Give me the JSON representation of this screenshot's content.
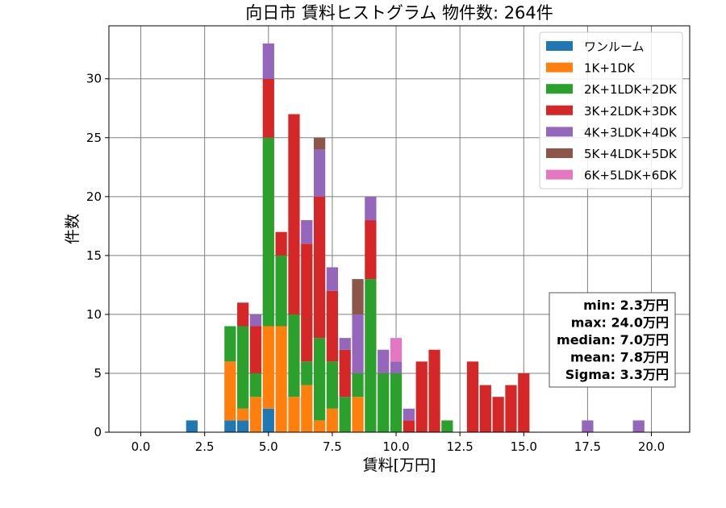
{
  "chart_data": {
    "type": "bar",
    "stacked": true,
    "title": "向日市 賃料ヒストグラム 物件数: 264件",
    "xlabel": "賃料[万円]",
    "ylabel": "件数",
    "xlim": [
      -1.25,
      21.5
    ],
    "ylim": [
      0,
      34.5
    ],
    "xticks": [
      "0.0",
      "2.5",
      "5.0",
      "7.5",
      "10.0",
      "12.5",
      "15.0",
      "17.5",
      "20.0"
    ],
    "yticks": [
      "0",
      "5",
      "10",
      "15",
      "20",
      "25",
      "30"
    ],
    "grid": true,
    "legend_position": "top-right",
    "bin_width": 0.5,
    "x": [
      2.0,
      3.5,
      4.0,
      4.5,
      5.0,
      5.5,
      6.0,
      6.5,
      7.0,
      7.5,
      8.0,
      8.5,
      9.0,
      9.5,
      10.0,
      10.5,
      11.0,
      11.5,
      12.0,
      13.0,
      13.5,
      14.0,
      14.5,
      15.0,
      17.5,
      19.5
    ],
    "series": [
      {
        "name": "ワンルーム",
        "color": "#1f77b4",
        "values": [
          1,
          1,
          1,
          0,
          2,
          0,
          0,
          0,
          0,
          0,
          0,
          0,
          0,
          0,
          0,
          0,
          0,
          0,
          0,
          0,
          0,
          0,
          0,
          0,
          0,
          0
        ]
      },
      {
        "name": "1K+1DK",
        "color": "#ff7f0e",
        "values": [
          0,
          5,
          1,
          3,
          7,
          9,
          3,
          4,
          1,
          2,
          0,
          3,
          0,
          0,
          0,
          0,
          0,
          0,
          0,
          0,
          0,
          0,
          0,
          0,
          0,
          0
        ]
      },
      {
        "name": "2K+1LDK+2DK",
        "color": "#2ca02c",
        "values": [
          0,
          3,
          7,
          2,
          16,
          6,
          7,
          2,
          7,
          4,
          3,
          2,
          13,
          5,
          5,
          0,
          0,
          0,
          1,
          0,
          0,
          0,
          0,
          0,
          0,
          0
        ]
      },
      {
        "name": "3K+2LDK+3DK",
        "color": "#d62728",
        "values": [
          0,
          0,
          2,
          4,
          5,
          2,
          17,
          10,
          12,
          6,
          4,
          0,
          5,
          0,
          0,
          1,
          6,
          7,
          0,
          6,
          4,
          3,
          4,
          5,
          0,
          0
        ]
      },
      {
        "name": "4K+3LDK+4DK",
        "color": "#9467bd",
        "values": [
          0,
          0,
          0,
          1,
          3,
          0,
          0,
          2,
          4,
          2,
          1,
          5,
          2,
          2,
          1,
          1,
          0,
          0,
          0,
          0,
          0,
          0,
          0,
          0,
          1,
          1
        ]
      },
      {
        "name": "5K+4LDK+5DK",
        "color": "#8c564b",
        "values": [
          0,
          0,
          0,
          0,
          0,
          0,
          0,
          0,
          1,
          0,
          0,
          3,
          0,
          0,
          0,
          0,
          0,
          0,
          0,
          0,
          0,
          0,
          0,
          0,
          0,
          0
        ]
      },
      {
        "name": "6K+5LDK+6DK",
        "color": "#e377c2",
        "values": [
          0,
          0,
          0,
          0,
          0,
          0,
          0,
          0,
          0,
          0,
          0,
          0,
          0,
          0,
          2,
          0,
          0,
          0,
          0,
          0,
          0,
          0,
          0,
          0,
          0,
          0
        ]
      }
    ],
    "annotations": [
      "min: 2.3万円",
      "max: 24.0万円",
      "median: 7.0万円",
      "mean: 7.8万円",
      "Sigma: 3.3万円"
    ]
  }
}
